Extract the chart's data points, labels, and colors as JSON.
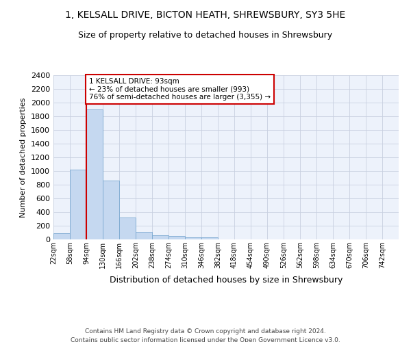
{
  "title_line1": "1, KELSALL DRIVE, BICTON HEATH, SHREWSBURY, SY3 5HE",
  "title_line2": "Size of property relative to detached houses in Shrewsbury",
  "xlabel": "Distribution of detached houses by size in Shrewsbury",
  "ylabel": "Number of detached properties",
  "annotation_line1": "1 KELSALL DRIVE: 93sqm",
  "annotation_line2": "← 23% of detached houses are smaller (993)",
  "annotation_line3": "76% of semi-detached houses are larger (3,355) →",
  "footer_line1": "Contains HM Land Registry data © Crown copyright and database right 2024.",
  "footer_line2": "Contains public sector information licensed under the Open Government Licence v3.0.",
  "bin_labels": [
    "22sqm",
    "58sqm",
    "94sqm",
    "130sqm",
    "166sqm",
    "202sqm",
    "238sqm",
    "274sqm",
    "310sqm",
    "346sqm",
    "382sqm",
    "418sqm",
    "454sqm",
    "490sqm",
    "526sqm",
    "562sqm",
    "598sqm",
    "634sqm",
    "670sqm",
    "706sqm",
    "742sqm"
  ],
  "bin_edges": [
    22,
    58,
    94,
    130,
    166,
    202,
    238,
    274,
    310,
    346,
    382,
    418,
    454,
    490,
    526,
    562,
    598,
    634,
    670,
    706,
    742
  ],
  "bar_values": [
    90,
    1020,
    1900,
    860,
    320,
    115,
    58,
    50,
    35,
    30,
    0,
    0,
    0,
    0,
    0,
    0,
    0,
    0,
    0,
    0
  ],
  "bar_color": "#c5d8f0",
  "bar_edge_color": "#7aa8d0",
  "highlight_color": "#cc0000",
  "highlight_bin_index": 2,
  "annotation_box_color": "#cc0000",
  "background_color": "#edf2fb",
  "grid_color": "#c8d0e0",
  "ylim": [
    0,
    2400
  ],
  "yticks": [
    0,
    200,
    400,
    600,
    800,
    1000,
    1200,
    1400,
    1600,
    1800,
    2000,
    2200,
    2400
  ]
}
